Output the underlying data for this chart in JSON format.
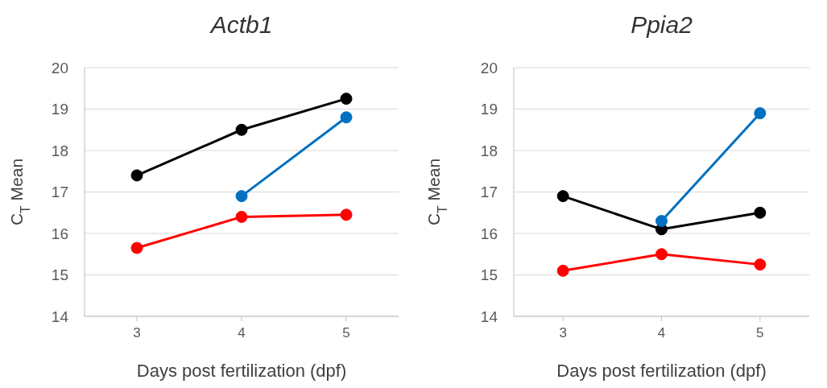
{
  "chart_data": [
    {
      "type": "line",
      "title": "Actb1",
      "xlabel": "Days post fertilization (dpf)",
      "ylabel": "C$_{T}$ Mean",
      "x": [
        3,
        4,
        5
      ],
      "xlim": [
        2.5,
        5.5
      ],
      "xticks": [
        3,
        4,
        5
      ],
      "ylim": [
        14,
        20
      ],
      "yticks": [
        14,
        15,
        16,
        17,
        18,
        19,
        20
      ],
      "grid": "y",
      "legend": false,
      "marker": "circle",
      "line_style": "solid",
      "series": [
        {
          "color": "#000000",
          "values": [
            17.4,
            18.5,
            19.25
          ]
        },
        {
          "color": "#0070c0",
          "values": [
            null,
            16.9,
            18.8
          ]
        },
        {
          "color": "#ff0000",
          "values": [
            15.65,
            16.4,
            16.45
          ]
        }
      ]
    },
    {
      "type": "line",
      "title": "Ppia2",
      "xlabel": "Days post fertilization (dpf)",
      "ylabel": "C$_{T}$ Mean",
      "x": [
        3,
        4,
        5
      ],
      "xlim": [
        2.5,
        5.5
      ],
      "xticks": [
        3,
        4,
        5
      ],
      "ylim": [
        14,
        20
      ],
      "yticks": [
        14,
        15,
        16,
        17,
        18,
        19,
        20
      ],
      "grid": "y",
      "legend": false,
      "marker": "circle",
      "line_style": "solid",
      "series": [
        {
          "color": "#000000",
          "values": [
            16.9,
            16.1,
            16.5
          ]
        },
        {
          "color": "#0070c0",
          "values": [
            null,
            16.3,
            18.9
          ]
        },
        {
          "color": "#ff0000",
          "values": [
            15.1,
            15.5,
            15.25
          ]
        }
      ]
    }
  ]
}
